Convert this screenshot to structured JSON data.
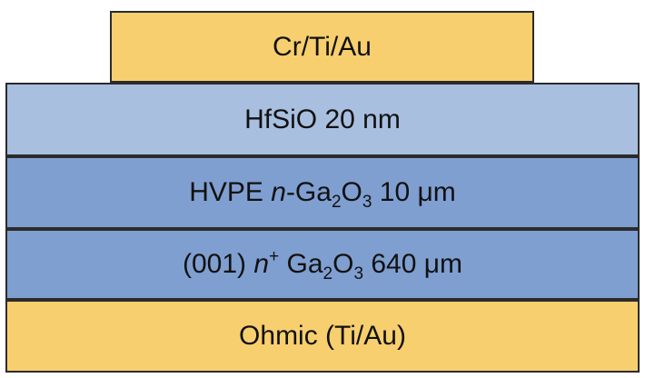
{
  "layers": {
    "top_contact": {
      "label": "Cr/Ti/Au",
      "color": "#f8cf6e"
    },
    "hfsio": {
      "label": "HfSiO 20 nm",
      "color": "#a8bfe0"
    },
    "hvpe": {
      "prefix": "HVPE ",
      "doping": "n",
      "material_1": "-Ga",
      "sub_1": "2",
      "material_2": "O",
      "sub_2": "3",
      "thickness": " 10 μm",
      "color": "#7f9fd1"
    },
    "substrate": {
      "orientation": "(001) ",
      "doping": "n",
      "doping_sup": "+",
      "material_1": " Ga",
      "sub_1": "2",
      "material_2": "O",
      "sub_2": "3",
      "thickness": " 640 μm",
      "color": "#7f9fd1"
    },
    "ohmic": {
      "label": "Ohmic (Ti/Au)",
      "color": "#f8cf6e"
    }
  }
}
